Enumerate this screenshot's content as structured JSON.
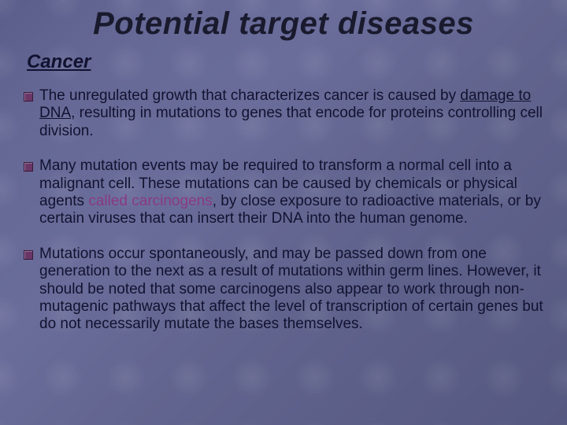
{
  "colors": {
    "background_gradient": [
      "#5a5d8a",
      "#656895",
      "#6a6d9a",
      "#62658f",
      "#5c5f88",
      "#555880"
    ],
    "title_color": "#1a1a2e",
    "body_text_color": "#121230",
    "bullet_color": "#6a3666",
    "carcinogen_color": "#8a3a82"
  },
  "typography": {
    "title_fontsize": 40,
    "subtitle_fontsize": 24,
    "body_fontsize": 19,
    "font_family": "Arial",
    "title_italic": true,
    "subtitle_italic": true
  },
  "title": "Potential target diseases",
  "subtitle": "Cancer",
  "bullets": [
    {
      "pre": "The unregulated growth that characterizes cancer is caused by ",
      "underline": "damage to DNA",
      "post": ", resulting in mutations to genes that encode for proteins controlling cell division."
    },
    {
      "pre": "Many mutation events may be required to transform a normal cell into a malignant cell. These mutations can be caused by chemicals or physical agents ",
      "highlight": "called carcinogens",
      "post": ", by close exposure to radioactive materials, or by certain viruses that can insert their DNA into the human genome."
    },
    {
      "pre": "Mutations occur spontaneously, and may be passed down from one generation to the next as a result of mutations within germ lines. However, it should be noted that some carcinogens also appear to work through non-mutagenic pathways that affect the level of transcription of certain genes but do not necessarily mutate the bases themselves.",
      "post": ""
    }
  ]
}
